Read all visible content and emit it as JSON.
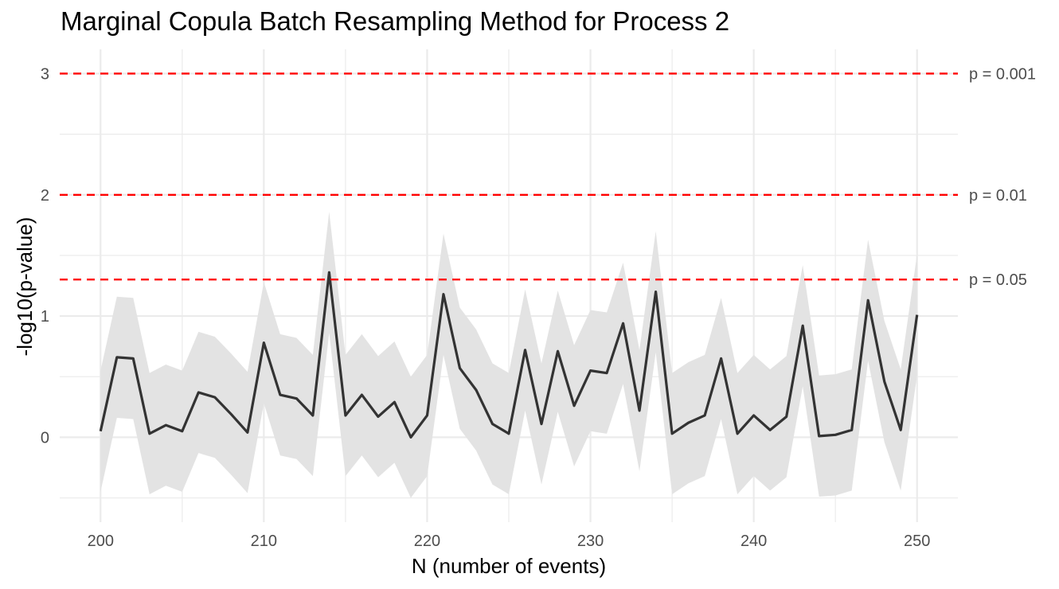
{
  "chart_data": {
    "type": "line",
    "title": "Marginal Copula Batch Resampling Method for Process 2",
    "xlabel": "N (number of events)",
    "ylabel": "-log10(p-value)",
    "xlim": [
      197.5,
      252.5
    ],
    "ylim": [
      -0.7,
      3.2
    ],
    "x_ticks": [
      200,
      210,
      220,
      230,
      240,
      250
    ],
    "y_ticks": [
      0,
      1,
      2,
      3
    ],
    "grid": true,
    "band_halfwidth": 0.5,
    "colors": {
      "line": "#333333",
      "band": "#e3e3e3",
      "reference": "#ff0000",
      "grid": "#ebebeb"
    },
    "reference_lines": [
      {
        "y": 3,
        "label": "p = 0.001"
      },
      {
        "y": 2,
        "label": "p = 0.01"
      },
      {
        "y": 1.30103,
        "label": "p = 0.05"
      }
    ],
    "series": [
      {
        "x": [
          200,
          201,
          202,
          203,
          204,
          205,
          206,
          207,
          208,
          209,
          210,
          211,
          212,
          213,
          214,
          215,
          216,
          217,
          218,
          219,
          220,
          221,
          222,
          223,
          224,
          225,
          226,
          227,
          228,
          229,
          230,
          231,
          232,
          233,
          234,
          235,
          236,
          237,
          238,
          239,
          240,
          241,
          242,
          243,
          244,
          245,
          246,
          247,
          248,
          249,
          250
        ],
        "y": [
          0.05,
          0.66,
          0.65,
          0.03,
          0.1,
          0.05,
          0.37,
          0.33,
          0.19,
          0.04,
          0.78,
          0.35,
          0.32,
          0.18,
          1.36,
          0.18,
          0.35,
          0.17,
          0.29,
          0.0,
          0.18,
          1.18,
          0.57,
          0.39,
          0.11,
          0.03,
          0.72,
          0.11,
          0.71,
          0.26,
          0.55,
          0.53,
          0.94,
          0.22,
          1.2,
          0.03,
          0.12,
          0.18,
          0.65,
          0.03,
          0.18,
          0.06,
          0.17,
          0.92,
          0.01,
          0.02,
          0.06,
          1.13,
          0.46,
          0.06,
          1.01
        ]
      }
    ]
  }
}
